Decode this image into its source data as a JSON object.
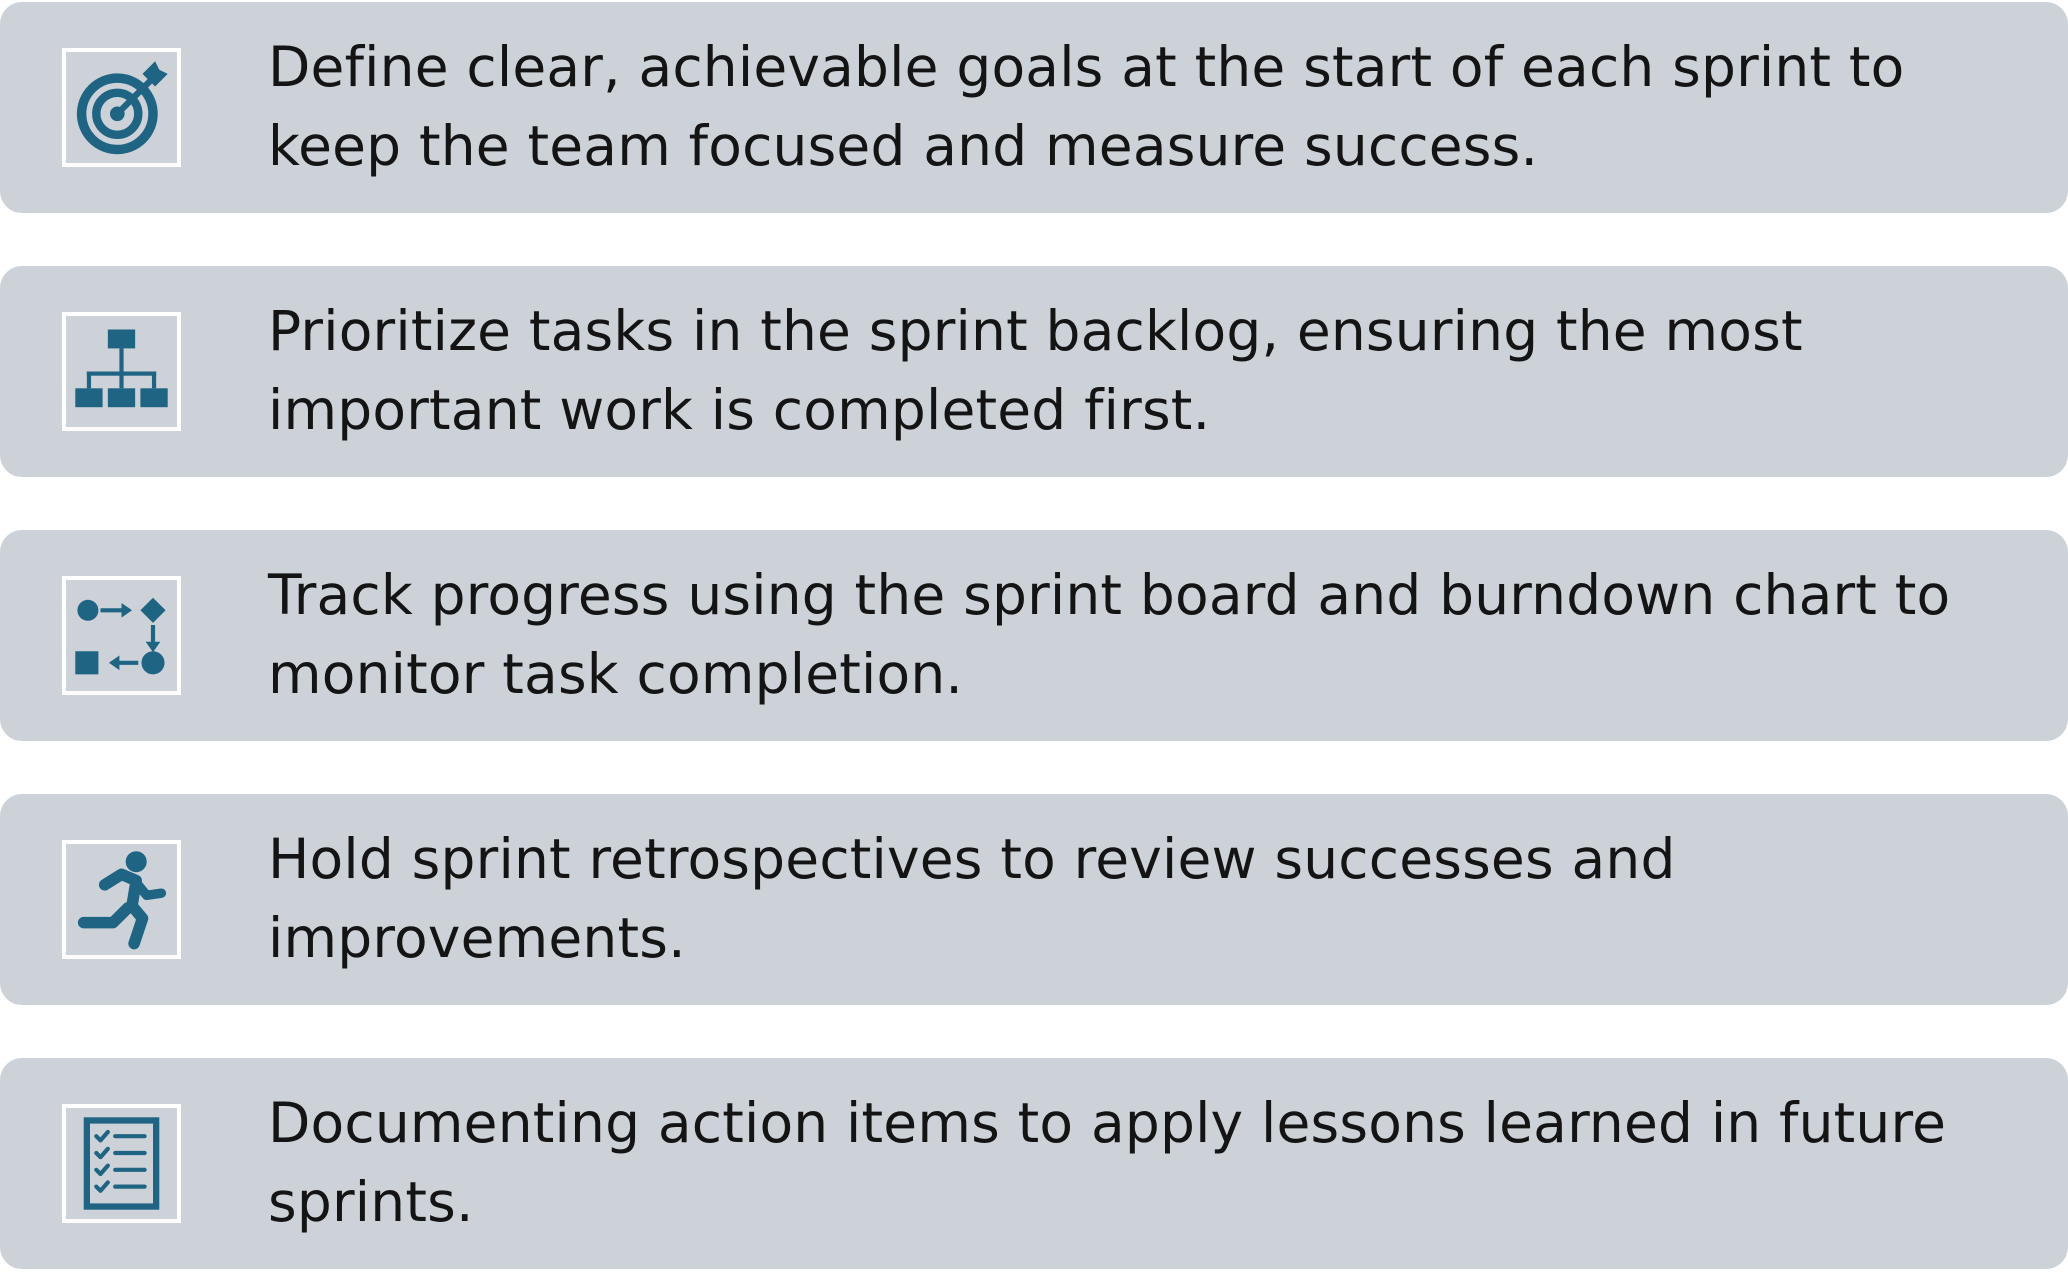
{
  "colors": {
    "card_background": "#cdd2d9",
    "icon_color": "#1f6483",
    "text_color": "#141414",
    "icon_frame": "#ffffff"
  },
  "cards": [
    {
      "icon": "target-icon",
      "text": "Define clear, achievable goals at the start of each sprint to keep the team focused and measure success."
    },
    {
      "icon": "hierarchy-icon",
      "text": "Prioritize tasks in the sprint backlog, ensuring the most important work is completed first."
    },
    {
      "icon": "process-flow-icon",
      "text": "Track progress using the sprint board and burndown chart to monitor task completion."
    },
    {
      "icon": "running-person-icon",
      "text": "Hold sprint retrospectives to review successes and improvements."
    },
    {
      "icon": "checklist-icon",
      "text": "Documenting action items to apply lessons learned in future sprints."
    }
  ]
}
